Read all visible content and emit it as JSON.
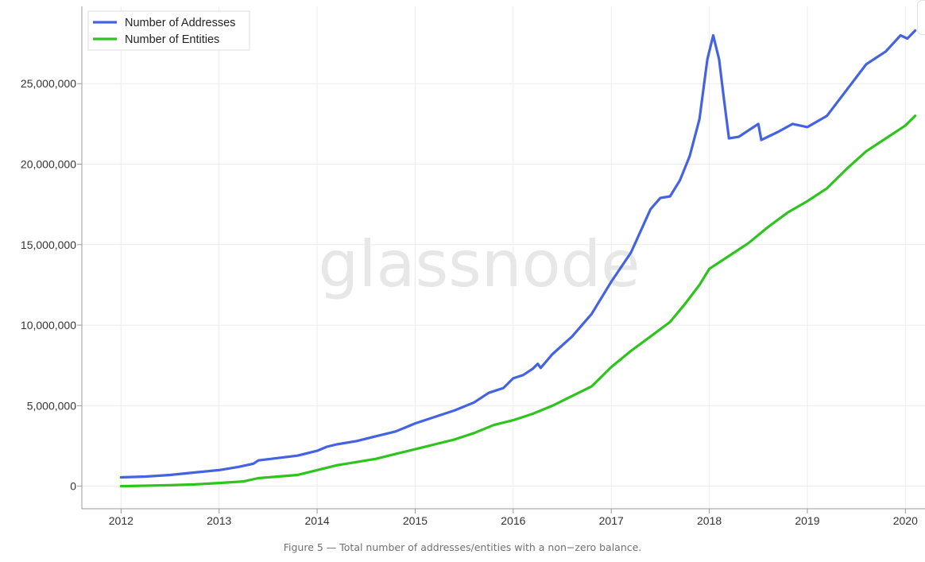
{
  "chart_data": {
    "type": "line",
    "title": "",
    "xlabel": "",
    "ylabel": "",
    "watermark": "glassnode",
    "caption": "Figure 5 — Total number of addresses/entities with a non−zero balance.",
    "xlim": [
      2011.6,
      2020.2
    ],
    "ylim": [
      -1400000,
      29800000
    ],
    "x_ticks": [
      2012,
      2013,
      2014,
      2015,
      2016,
      2017,
      2018,
      2019,
      2020
    ],
    "y_ticks": [
      0,
      5000000,
      10000000,
      15000000,
      20000000,
      25000000
    ],
    "y_tick_labels": [
      "0",
      "5,000,000",
      "10,000,000",
      "15,000,000",
      "20,000,000",
      "25,000,000"
    ],
    "grid": true,
    "legend_position": "top-left",
    "series": [
      {
        "name": "Number of Addresses",
        "color": "#4463e0",
        "points": [
          [
            2012.0,
            550000
          ],
          [
            2012.25,
            600000
          ],
          [
            2012.5,
            700000
          ],
          [
            2012.75,
            850000
          ],
          [
            2013.0,
            1000000
          ],
          [
            2013.2,
            1200000
          ],
          [
            2013.35,
            1400000
          ],
          [
            2013.4,
            1600000
          ],
          [
            2013.6,
            1750000
          ],
          [
            2013.8,
            1900000
          ],
          [
            2014.0,
            2200000
          ],
          [
            2014.1,
            2450000
          ],
          [
            2014.2,
            2600000
          ],
          [
            2014.4,
            2800000
          ],
          [
            2014.6,
            3100000
          ],
          [
            2014.8,
            3400000
          ],
          [
            2015.0,
            3900000
          ],
          [
            2015.2,
            4300000
          ],
          [
            2015.4,
            4700000
          ],
          [
            2015.6,
            5200000
          ],
          [
            2015.75,
            5800000
          ],
          [
            2015.9,
            6100000
          ],
          [
            2016.0,
            6700000
          ],
          [
            2016.1,
            6900000
          ],
          [
            2016.2,
            7300000
          ],
          [
            2016.25,
            7600000
          ],
          [
            2016.28,
            7350000
          ],
          [
            2016.4,
            8200000
          ],
          [
            2016.6,
            9300000
          ],
          [
            2016.8,
            10700000
          ],
          [
            2017.0,
            12700000
          ],
          [
            2017.2,
            14500000
          ],
          [
            2017.4,
            17200000
          ],
          [
            2017.5,
            17900000
          ],
          [
            2017.6,
            18000000
          ],
          [
            2017.7,
            19000000
          ],
          [
            2017.8,
            20500000
          ],
          [
            2017.9,
            22800000
          ],
          [
            2017.98,
            26500000
          ],
          [
            2018.04,
            28000000
          ],
          [
            2018.1,
            26500000
          ],
          [
            2018.15,
            24000000
          ],
          [
            2018.2,
            21600000
          ],
          [
            2018.3,
            21700000
          ],
          [
            2018.5,
            22500000
          ],
          [
            2018.53,
            21500000
          ],
          [
            2018.7,
            22000000
          ],
          [
            2018.85,
            22500000
          ],
          [
            2019.0,
            22300000
          ],
          [
            2019.2,
            23000000
          ],
          [
            2019.4,
            24600000
          ],
          [
            2019.6,
            26200000
          ],
          [
            2019.8,
            27000000
          ],
          [
            2019.95,
            28000000
          ],
          [
            2020.02,
            27800000
          ],
          [
            2020.1,
            28300000
          ]
        ]
      },
      {
        "name": "Number of Entities",
        "color": "#2ec41e",
        "points": [
          [
            2012.0,
            0
          ],
          [
            2012.25,
            30000
          ],
          [
            2012.5,
            60000
          ],
          [
            2012.75,
            110000
          ],
          [
            2013.0,
            200000
          ],
          [
            2013.25,
            300000
          ],
          [
            2013.4,
            500000
          ],
          [
            2013.6,
            600000
          ],
          [
            2013.8,
            700000
          ],
          [
            2014.0,
            1000000
          ],
          [
            2014.2,
            1300000
          ],
          [
            2014.4,
            1500000
          ],
          [
            2014.6,
            1700000
          ],
          [
            2014.8,
            2000000
          ],
          [
            2015.0,
            2300000
          ],
          [
            2015.2,
            2600000
          ],
          [
            2015.4,
            2900000
          ],
          [
            2015.6,
            3300000
          ],
          [
            2015.8,
            3800000
          ],
          [
            2016.0,
            4100000
          ],
          [
            2016.2,
            4500000
          ],
          [
            2016.4,
            5000000
          ],
          [
            2016.6,
            5600000
          ],
          [
            2016.8,
            6200000
          ],
          [
            2017.0,
            7400000
          ],
          [
            2017.2,
            8400000
          ],
          [
            2017.4,
            9300000
          ],
          [
            2017.6,
            10200000
          ],
          [
            2017.75,
            11300000
          ],
          [
            2017.9,
            12500000
          ],
          [
            2018.0,
            13500000
          ],
          [
            2018.2,
            14300000
          ],
          [
            2018.4,
            15100000
          ],
          [
            2018.6,
            16100000
          ],
          [
            2018.8,
            17000000
          ],
          [
            2019.0,
            17700000
          ],
          [
            2019.2,
            18500000
          ],
          [
            2019.4,
            19700000
          ],
          [
            2019.6,
            20800000
          ],
          [
            2019.8,
            21600000
          ],
          [
            2020.0,
            22400000
          ],
          [
            2020.1,
            23000000
          ]
        ]
      }
    ]
  }
}
